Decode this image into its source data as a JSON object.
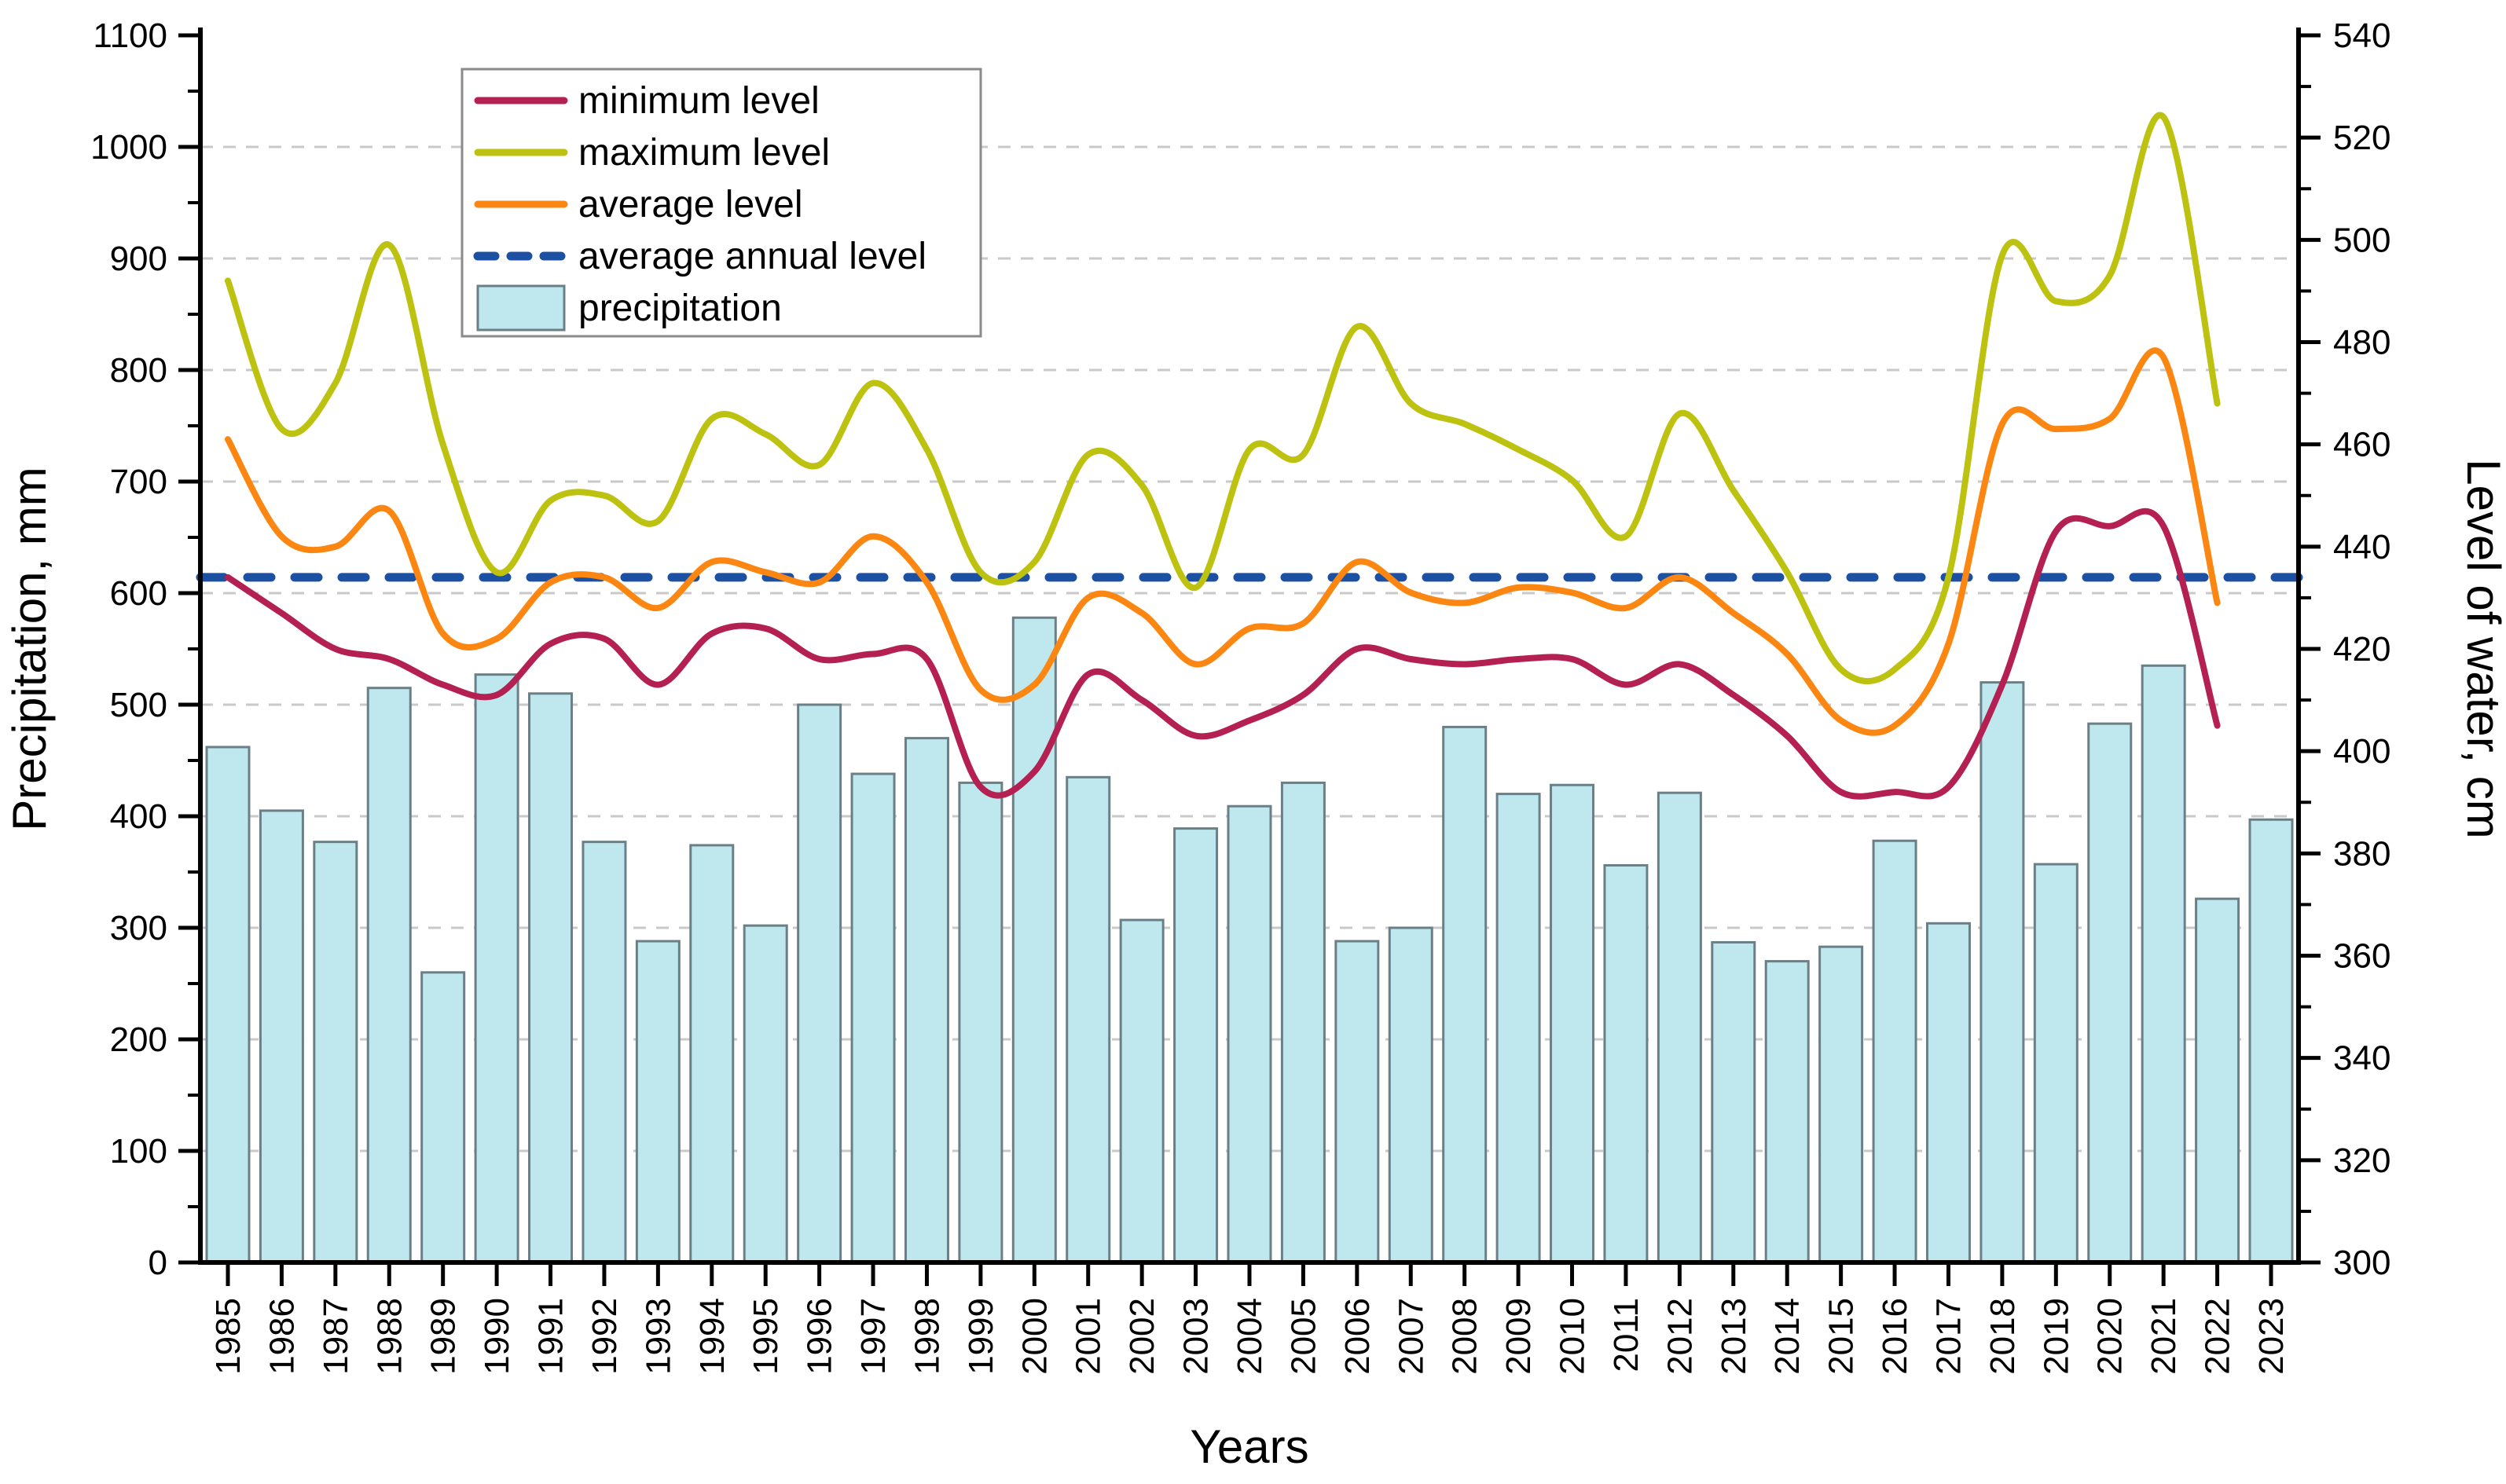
{
  "chart_data": {
    "type": "combo-bar-line",
    "title": "",
    "xlabel": "Years",
    "ylabel_left": "Precipitation, mm",
    "ylabel_right": "Level of water, cm",
    "categories": [
      1985,
      1986,
      1987,
      1988,
      1989,
      1990,
      1991,
      1992,
      1993,
      1994,
      1995,
      1996,
      1997,
      1998,
      1999,
      2000,
      2001,
      2002,
      2003,
      2004,
      2005,
      2006,
      2007,
      2008,
      2009,
      2010,
      2011,
      2012,
      2013,
      2014,
      2015,
      2016,
      2017,
      2018,
      2019,
      2020,
      2021,
      2022,
      2023
    ],
    "y_left_axis": {
      "min": 0,
      "max": 1100,
      "tick_step": 100,
      "minor_step": 50,
      "ticks": [
        0,
        100,
        200,
        300,
        400,
        500,
        600,
        700,
        800,
        900,
        1000,
        1100
      ]
    },
    "y_right_axis": {
      "min": 300,
      "max": 540,
      "tick_step": 20,
      "minor_step": 10,
      "ticks": [
        300,
        320,
        340,
        360,
        380,
        400,
        420,
        440,
        460,
        480,
        500,
        520,
        540
      ]
    },
    "grid": {
      "horizontal_dashed_every_mm": 100,
      "on": true
    },
    "legend_position": "upper-left-inside",
    "series": [
      {
        "name": "minimum  level",
        "type": "line",
        "axis": "right",
        "unit": "cm",
        "color_key": "min",
        "year_start": 1985,
        "year_end": 2022,
        "values": [
          434,
          427,
          420,
          418,
          413,
          411,
          421,
          422,
          413,
          423,
          424,
          418,
          419,
          418,
          393,
          396,
          415,
          410,
          403,
          406,
          411,
          420,
          418,
          417,
          418,
          418,
          413,
          417,
          411,
          403,
          392,
          392,
          393,
          413,
          443,
          444,
          444,
          405
        ]
      },
      {
        "name": "maximum  level",
        "type": "line",
        "axis": "right",
        "unit": "cm",
        "color_key": "max",
        "year_start": 1985,
        "year_end": 2022,
        "values": [
          492,
          463,
          472,
          499,
          460,
          435,
          449,
          450,
          445,
          465,
          462,
          456,
          472,
          459,
          435,
          437,
          458,
          452,
          432,
          459,
          458,
          483,
          468,
          464,
          459,
          453,
          442,
          466,
          451,
          435,
          416,
          416,
          434,
          497,
          488,
          493,
          524,
          468
        ]
      },
      {
        "name": "average level",
        "type": "line",
        "axis": "right",
        "unit": "cm",
        "color_key": "avg",
        "year_start": 1985,
        "year_end": 2022,
        "values": [
          461,
          442,
          440,
          447,
          423,
          422,
          433,
          434,
          428,
          437,
          435,
          433,
          442,
          433,
          412,
          413,
          430,
          427,
          417,
          424,
          425,
          437,
          431,
          429,
          432,
          431,
          428,
          434,
          427,
          419,
          406,
          405,
          421,
          464,
          463,
          465,
          477,
          429
        ]
      },
      {
        "name": "average annual level",
        "type": "hline-dashed",
        "axis": "right",
        "unit": "cm",
        "color_key": "annual",
        "value": 434
      },
      {
        "name": "precipitation",
        "type": "bar",
        "axis": "left",
        "unit": "mm",
        "color_key": "bar_fill",
        "year_start": 1985,
        "year_end": 2023,
        "values": [
          462,
          405,
          377,
          515,
          260,
          527,
          510,
          377,
          288,
          374,
          302,
          500,
          438,
          470,
          430,
          578,
          435,
          307,
          389,
          409,
          430,
          288,
          300,
          480,
          420,
          428,
          356,
          421,
          287,
          270,
          283,
          378,
          304,
          520,
          357,
          483,
          535,
          326,
          397
        ]
      }
    ]
  },
  "colors": {
    "min": "#b42051",
    "max": "#bcc20f",
    "avg": "#fb8712",
    "annual": "#1c50a2",
    "bar_fill": "#bfe7ee",
    "bar_border": "#6b7f87",
    "grid": "#c9c9c9",
    "axis": "#000000",
    "legend_border": "#8a8a8a",
    "background": "#ffffff"
  },
  "legend": {
    "entries": [
      "minimum  level",
      "maximum  level",
      "average level",
      "average annual level",
      "precipitation"
    ]
  }
}
